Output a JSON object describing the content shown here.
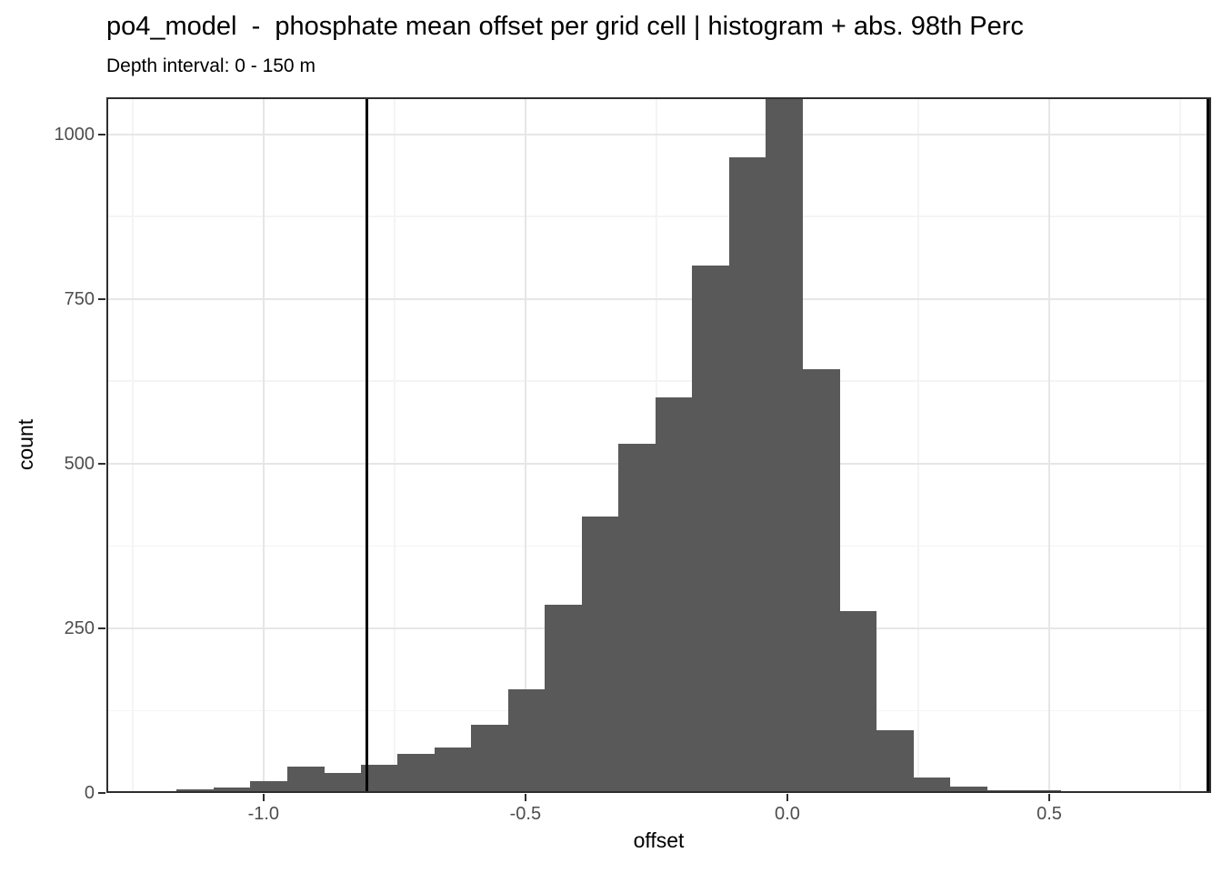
{
  "title": "po4_model  -  phosphate mean offset per grid cell | histogram + abs. 98th Perc",
  "subtitle": "Depth interval: 0 - 150 m",
  "colors": {
    "bar_fill": "#595959",
    "vline": "#000000",
    "panel_border": "#2e2e2e",
    "grid_major": "#e6e6e6",
    "grid_minor": "#f4f4f4",
    "tick_label": "#4d4d4d",
    "text": "#000000"
  },
  "chart_data": {
    "type": "bar",
    "subtype": "histogram",
    "title": "po4_model  -  phosphate mean offset per grid cell | histogram + abs. 98th Perc",
    "subtitle": "Depth interval: 0 - 150 m",
    "xlabel": "offset",
    "ylabel": "count",
    "bin_start": -1.2365,
    "bin_width": 0.0703,
    "counts": [
      2,
      5,
      8,
      18,
      40,
      30,
      43,
      60,
      69,
      103,
      157,
      286,
      420,
      530,
      600,
      800,
      965,
      1058,
      643,
      276,
      95,
      23,
      10,
      4,
      4,
      2,
      2
    ],
    "vlines": [
      -0.803,
      0.803
    ],
    "x_domain": [
      -1.3,
      0.809
    ],
    "y_domain": [
      0,
      1056
    ],
    "x_ticks": [
      -1.0,
      -0.5,
      0.0,
      0.5
    ],
    "x_tick_labels": [
      "-1.0",
      "-0.5",
      "0.0",
      "0.5"
    ],
    "x_minor": [
      -1.25,
      -0.75,
      -0.25,
      0.25,
      0.75
    ],
    "y_ticks": [
      0,
      250,
      500,
      750,
      1000
    ],
    "y_tick_labels": [
      "0",
      "250",
      "500",
      "750",
      "1000"
    ],
    "y_minor": [
      125,
      375,
      625,
      875
    ],
    "grid": true,
    "legend": "none"
  }
}
